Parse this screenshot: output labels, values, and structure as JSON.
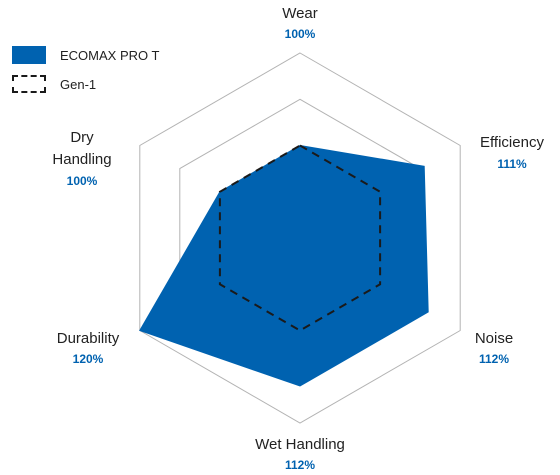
{
  "chart_data": {
    "type": "radar",
    "axes": [
      "Wear",
      "Efficiency",
      "Noise",
      "Wet Handling",
      "Durability",
      "Dry Handling"
    ],
    "axis_labels": [
      {
        "name": "Wear",
        "value_text": "100%"
      },
      {
        "name": "Efficiency",
        "value_text": "111%"
      },
      {
        "name": "Noise",
        "value_text": "112%"
      },
      {
        "name": "Wet Handling",
        "value_text": "112%"
      },
      {
        "name": "Durability",
        "value_text": "120%"
      },
      {
        "name": "Dry",
        "name_line2": "Handling",
        "value_text": "100%"
      }
    ],
    "range": [
      80,
      120
    ],
    "rings": [
      80,
      90,
      100,
      110,
      120
    ],
    "series": [
      {
        "name": "ECOMAX PRO T",
        "values": [
          100,
          111,
          112,
          112,
          120,
          100
        ],
        "style": "filled",
        "color": "#0062B0"
      },
      {
        "name": "Gen-1",
        "values": [
          100,
          100,
          100,
          100,
          100,
          100
        ],
        "style": "dashed",
        "color": "#1a1a1a"
      }
    ],
    "legend": "top-left",
    "grid": true
  },
  "colors": {
    "accent": "#0062B0",
    "grid": "#b3b3b3",
    "text": "#222222"
  }
}
